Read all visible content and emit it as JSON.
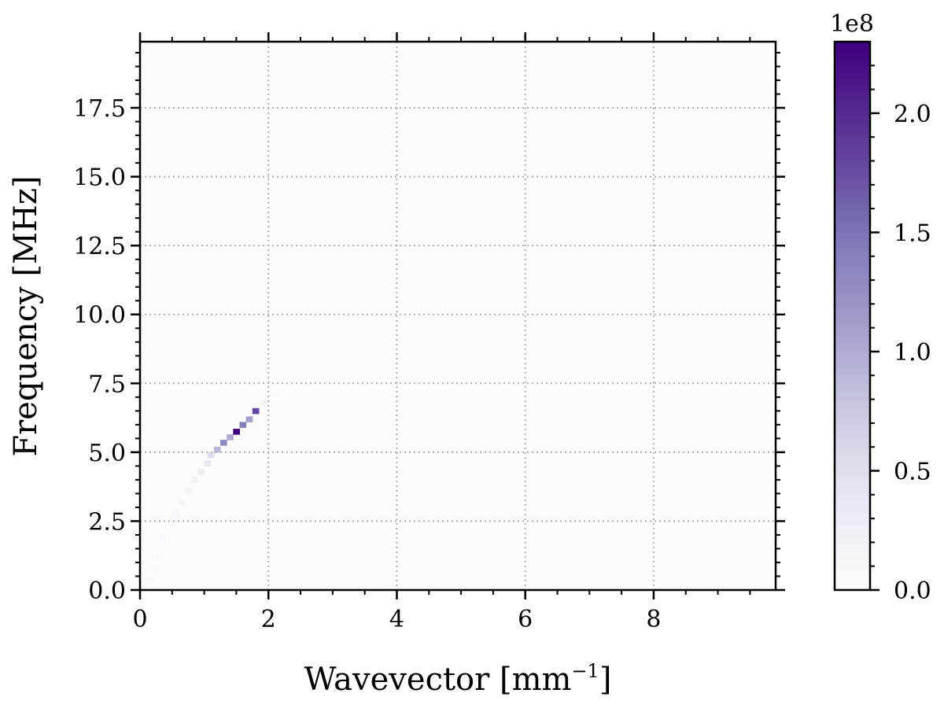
{
  "chart_data": {
    "type": "heatmap",
    "title": "",
    "xlabel": "Wavevector [mm",
    "xlabel_sup": "−1",
    "xlabel_close": "]",
    "ylabel": "Frequency [MHz]",
    "xlim": [
      0,
      9.9
    ],
    "ylim": [
      0,
      19.9
    ],
    "xticks": [
      0,
      2,
      4,
      6,
      8
    ],
    "xtick_labels": [
      "0",
      "2",
      "4",
      "6",
      "8"
    ],
    "yticks": [
      0,
      2.5,
      5,
      7.5,
      10,
      12.5,
      15,
      17.5
    ],
    "ytick_labels": [
      "0.0",
      "2.5",
      "5.0",
      "7.5",
      "10.0",
      "12.5",
      "15.0",
      "17.5"
    ],
    "grid": true,
    "colormap": "Purples",
    "colormap_stops": [
      "#fcfbfd",
      "#efedf5",
      "#dadaeb",
      "#bcbddc",
      "#9e9ac8",
      "#807dba",
      "#6a51a3",
      "#54278f",
      "#3f007d"
    ],
    "colorbar": {
      "range": [
        0,
        230000000.0
      ],
      "ticks": [
        0,
        50000000.0,
        100000000.0,
        150000000.0,
        200000000.0
      ],
      "tick_labels": [
        "0.0",
        "0.5",
        "1.0",
        "1.5",
        "2.0"
      ],
      "offset_label": "1e8"
    },
    "cells": [
      {
        "x": 0.15,
        "y": 0.35,
        "v": 4000000.0
      },
      {
        "x": 0.25,
        "y": 0.8,
        "v": 5000000.0
      },
      {
        "x": 0.3,
        "y": 1.2,
        "v": 6000000.0
      },
      {
        "x": 0.35,
        "y": 1.9,
        "v": 10000000.0
      },
      {
        "x": 0.5,
        "y": 2.4,
        "v": 8000000.0
      },
      {
        "x": 0.55,
        "y": 2.8,
        "v": 10000000.0
      },
      {
        "x": 0.65,
        "y": 3.2,
        "v": 12000000.0
      },
      {
        "x": 0.75,
        "y": 3.6,
        "v": 14000000.0
      },
      {
        "x": 0.85,
        "y": 4.0,
        "v": 18000000.0
      },
      {
        "x": 0.95,
        "y": 4.3,
        "v": 28000000.0
      },
      {
        "x": 1.05,
        "y": 4.6,
        "v": 35000000.0
      },
      {
        "x": 1.1,
        "y": 4.9,
        "v": 55000000.0
      },
      {
        "x": 1.2,
        "y": 5.1,
        "v": 90000000.0
      },
      {
        "x": 1.3,
        "y": 5.35,
        "v": 130000000.0
      },
      {
        "x": 1.4,
        "y": 5.55,
        "v": 100000000.0
      },
      {
        "x": 1.5,
        "y": 5.75,
        "v": 230000000.0
      },
      {
        "x": 1.6,
        "y": 6.0,
        "v": 140000000.0
      },
      {
        "x": 1.7,
        "y": 6.2,
        "v": 110000000.0
      },
      {
        "x": 1.8,
        "y": 6.5,
        "v": 180000000.0
      },
      {
        "x": 1.95,
        "y": 6.8,
        "v": 15000000.0
      },
      {
        "x": 2.1,
        "y": 7.1,
        "v": 6000000.0
      },
      {
        "x": 2.9,
        "y": 10.8,
        "v": 3000000.0
      },
      {
        "x": 3.1,
        "y": 11.6,
        "v": 3000000.0
      }
    ]
  }
}
